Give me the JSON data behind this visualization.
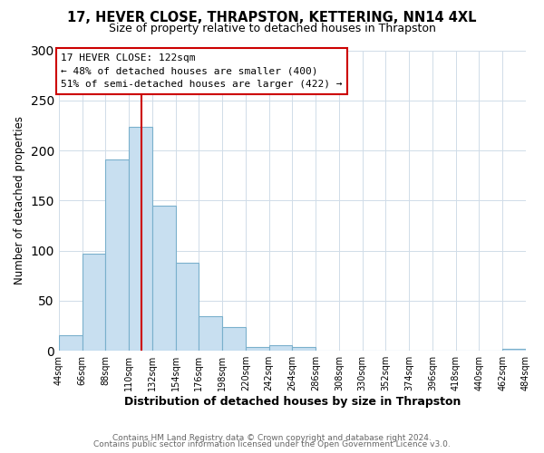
{
  "title": "17, HEVER CLOSE, THRAPSTON, KETTERING, NN14 4XL",
  "subtitle": "Size of property relative to detached houses in Thrapston",
  "xlabel": "Distribution of detached houses by size in Thrapston",
  "ylabel": "Number of detached properties",
  "bar_color": "#c8dff0",
  "bar_edge_color": "#7ab0cc",
  "bin_edges": [
    44,
    66,
    88,
    110,
    132,
    154,
    176,
    198,
    220,
    242,
    264,
    286,
    308,
    330,
    352,
    374,
    396,
    418,
    440,
    462,
    484
  ],
  "bin_labels": [
    "44sqm",
    "66sqm",
    "88sqm",
    "110sqm",
    "132sqm",
    "154sqm",
    "176sqm",
    "198sqm",
    "220sqm",
    "242sqm",
    "264sqm",
    "286sqm",
    "308sqm",
    "330sqm",
    "352sqm",
    "374sqm",
    "396sqm",
    "418sqm",
    "440sqm",
    "462sqm",
    "484sqm"
  ],
  "counts": [
    16,
    97,
    191,
    224,
    145,
    88,
    35,
    24,
    4,
    6,
    4,
    0,
    0,
    0,
    0,
    0,
    0,
    0,
    0,
    2
  ],
  "ylim": [
    0,
    300
  ],
  "yticks": [
    0,
    50,
    100,
    150,
    200,
    250,
    300
  ],
  "property_line_x": 122,
  "property_line_color": "#cc0000",
  "annotation_title": "17 HEVER CLOSE: 122sqm",
  "annotation_line1": "← 48% of detached houses are smaller (400)",
  "annotation_line2": "51% of semi-detached houses are larger (422) →",
  "annotation_box_color": "#ffffff",
  "annotation_box_edge": "#cc0000",
  "footer1": "Contains HM Land Registry data © Crown copyright and database right 2024.",
  "footer2": "Contains public sector information licensed under the Open Government Licence v3.0.",
  "grid_color": "#d0dce8",
  "background_color": "#ffffff"
}
